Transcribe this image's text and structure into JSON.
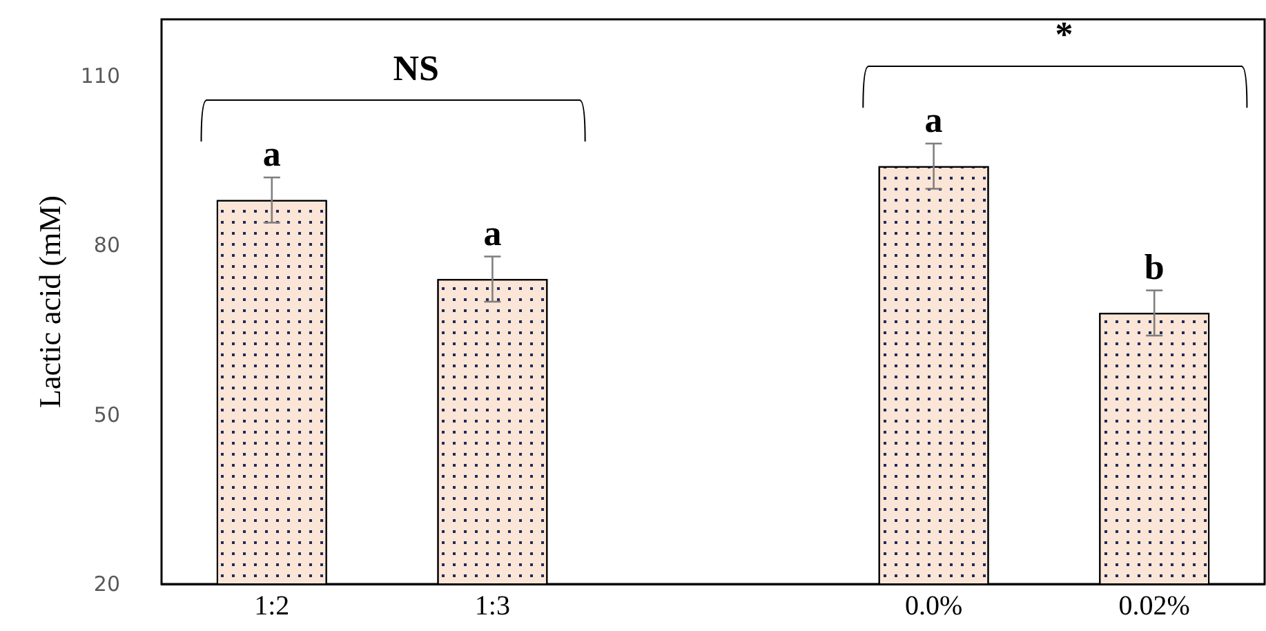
{
  "chart_data": {
    "type": "bar",
    "ylabel": "Lactic acid (mM)",
    "categories": [
      "1:2",
      "1:3",
      null,
      "0.0%",
      "0.02%"
    ],
    "values": [
      88,
      74,
      null,
      94,
      68
    ],
    "errors": [
      4,
      4,
      null,
      4,
      4
    ],
    "color": "#fbe5d6",
    "ylim": [
      20,
      120
    ],
    "yticks": [
      20,
      50,
      80,
      110
    ],
    "grid": false,
    "annotations": [
      "NS",
      "*",
      {
        "text": "a",
        "x": "1:2",
        "y": 92
      },
      {
        "text": "a",
        "x": "1:3",
        "y": 78
      },
      {
        "text": "a",
        "x": "0.0%",
        "y": 98
      },
      {
        "text": "b",
        "x": "0.02%",
        "y": 72
      }
    ]
  }
}
